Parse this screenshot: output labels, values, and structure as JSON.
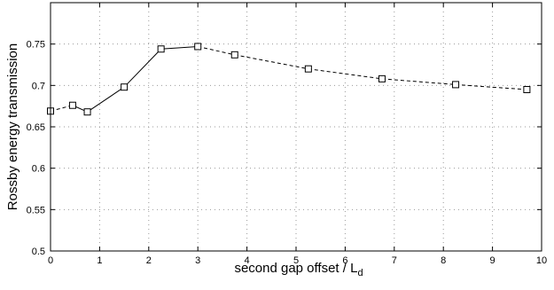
{
  "chart_data": {
    "type": "line",
    "title": "",
    "xlabel": "second gap offset / L",
    "xlabel_subscript": "d",
    "ylabel": "Rossby energy transmission",
    "xlim": [
      0,
      10
    ],
    "ylim": [
      0.5,
      0.8
    ],
    "xticks": [
      0,
      1,
      2,
      3,
      4,
      5,
      6,
      7,
      8,
      9,
      10
    ],
    "xtick_labels": [
      "0",
      "1",
      "2",
      "3",
      "4",
      "5",
      "6",
      "7",
      "8",
      "9",
      "10"
    ],
    "yticks": [
      0.5,
      0.55,
      0.6,
      0.65,
      0.7,
      0.75
    ],
    "ytick_labels": [
      "0.5",
      "0.55",
      "0.6",
      "0.65",
      "0.7",
      "0.75"
    ],
    "grid": true,
    "marker": "square",
    "series": [
      {
        "x": [
          0,
          0.45,
          0.75,
          1.5,
          2.25,
          3.0,
          3.75,
          5.25,
          6.75,
          8.25,
          9.7
        ],
        "y": [
          0.669,
          0.676,
          0.668,
          0.698,
          0.744,
          0.747,
          0.737,
          0.72,
          0.708,
          0.701,
          0.695
        ],
        "segment_styles": [
          "dashed",
          "solid",
          "solid",
          "solid",
          "solid",
          "dashed",
          "dashed",
          "dashed",
          "dashed",
          "dashed"
        ]
      }
    ]
  },
  "colors": {
    "axis": "#000000",
    "grid": "#9a9a9a",
    "line": "#000000",
    "marker_fill": "#ffffff"
  }
}
